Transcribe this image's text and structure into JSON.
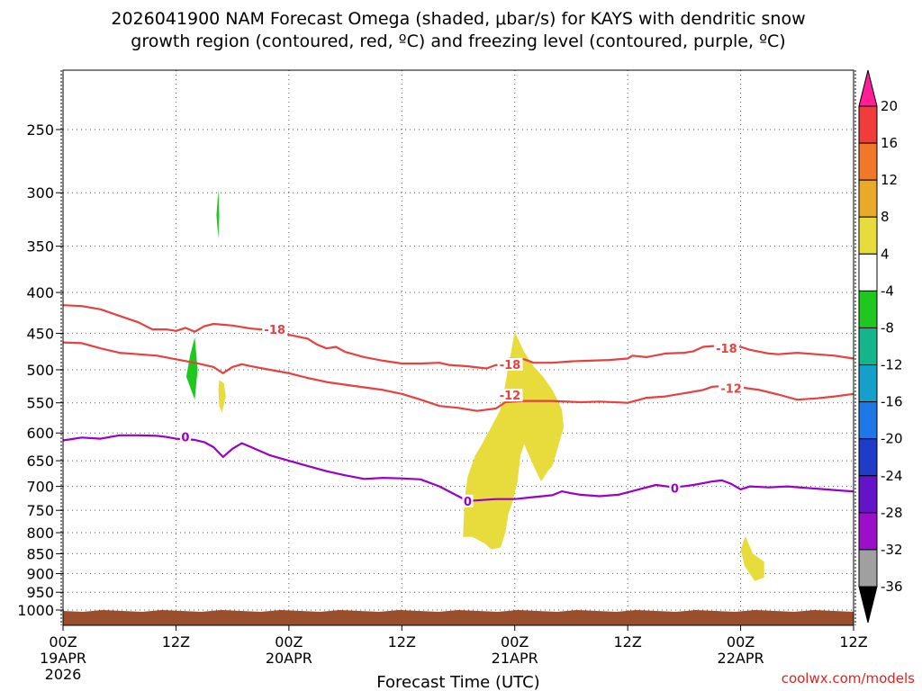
{
  "chart_data": {
    "type": "time-height cross-section",
    "title_line1": "2026041900 NAM Forecast Omega (shaded, μbar/s) for KAYS with dendritic snow",
    "title_line2": "growth region (contoured, red, ºC) and freezing level (contoured, purple, ºC)",
    "xlabel": "Forecast Time (UTC)",
    "credit": "coolwx.com/models",
    "x_range_hours": [
      0,
      84
    ],
    "x_ticks": [
      {
        "hour": 0,
        "label": "00Z",
        "date": "19APR",
        "year": "2026"
      },
      {
        "hour": 12,
        "label": "12Z",
        "date": "",
        "year": ""
      },
      {
        "hour": 24,
        "label": "00Z",
        "date": "20APR",
        "year": ""
      },
      {
        "hour": 36,
        "label": "12Z",
        "date": "",
        "year": ""
      },
      {
        "hour": 48,
        "label": "00Z",
        "date": "21APR",
        "year": ""
      },
      {
        "hour": 60,
        "label": "12Z",
        "date": "",
        "year": ""
      },
      {
        "hour": 72,
        "label": "00Z",
        "date": "22APR",
        "year": ""
      },
      {
        "hour": 84,
        "label": "12Z",
        "date": "",
        "year": ""
      }
    ],
    "y_pressure_levels": [
      "250",
      "300",
      "350",
      "400",
      "450",
      "500",
      "550",
      "600",
      "650",
      "700",
      "750",
      "800",
      "850",
      "900",
      "950",
      "1000"
    ],
    "y_range_hpa": [
      200,
      1030
    ],
    "colorbar": {
      "labels": [
        "20",
        "16",
        "12",
        "8",
        "4",
        "-4",
        "-8",
        "-12",
        "-16",
        "-20",
        "-24",
        "-28",
        "-32",
        "-36"
      ],
      "colors": [
        "#ff1e96",
        "#f23c3c",
        "#f07828",
        "#e8aa28",
        "#e8dc3c",
        "#ffffff",
        "#1ec81e",
        "#14b48c",
        "#14a0c8",
        "#1e78e6",
        "#1e3cc8",
        "#6414c8",
        "#9b0fc8",
        "#a0a0a0",
        "#000000"
      ]
    },
    "series": [
      {
        "name": "dgz_-18C",
        "label": "-18",
        "color": "#e84040",
        "label_at": [
          [
            22.5,
            445
          ],
          [
            47.5,
            492
          ],
          [
            70.5,
            470
          ]
        ],
        "points": [
          [
            0,
            415
          ],
          [
            2,
            416
          ],
          [
            4,
            420
          ],
          [
            6,
            428
          ],
          [
            8,
            436
          ],
          [
            9.5,
            445
          ],
          [
            11,
            445
          ],
          [
            12,
            447
          ],
          [
            13,
            443
          ],
          [
            14,
            448
          ],
          [
            15,
            441
          ],
          [
            16,
            438
          ],
          [
            18,
            440
          ],
          [
            20,
            444
          ],
          [
            22,
            446
          ],
          [
            24,
            452
          ],
          [
            26,
            457
          ],
          [
            27,
            465
          ],
          [
            28,
            470
          ],
          [
            29,
            468
          ],
          [
            30,
            475
          ],
          [
            32,
            482
          ],
          [
            34,
            487
          ],
          [
            36,
            491
          ],
          [
            38,
            491
          ],
          [
            40,
            490
          ],
          [
            41,
            493
          ],
          [
            43,
            495
          ],
          [
            45,
            498
          ],
          [
            46,
            493
          ],
          [
            46.8,
            496
          ],
          [
            47.5,
            484
          ],
          [
            49,
            485
          ],
          [
            50,
            490
          ],
          [
            52,
            490
          ],
          [
            54,
            488
          ],
          [
            56,
            487
          ],
          [
            58,
            486
          ],
          [
            60,
            484
          ],
          [
            60.5,
            480
          ],
          [
            62,
            482
          ],
          [
            64,
            477
          ],
          [
            66,
            476
          ],
          [
            67,
            474
          ],
          [
            68,
            468
          ],
          [
            70,
            466
          ],
          [
            72,
            468
          ],
          [
            73,
            472
          ],
          [
            75,
            477
          ],
          [
            76,
            478
          ],
          [
            78,
            476
          ],
          [
            80,
            478
          ],
          [
            82,
            480
          ],
          [
            84,
            484
          ]
        ]
      },
      {
        "name": "dgz_-12C",
        "label": "-12",
        "color": "#e84040",
        "label_at": [
          [
            47.5,
            538
          ],
          [
            71,
            527
          ]
        ],
        "points": [
          [
            0,
            462
          ],
          [
            2,
            463
          ],
          [
            4,
            470
          ],
          [
            6,
            476
          ],
          [
            8,
            478
          ],
          [
            10,
            480
          ],
          [
            12,
            485
          ],
          [
            14,
            490
          ],
          [
            16,
            496
          ],
          [
            17,
            505
          ],
          [
            18,
            496
          ],
          [
            19,
            492
          ],
          [
            20,
            495
          ],
          [
            22,
            500
          ],
          [
            24,
            505
          ],
          [
            26,
            512
          ],
          [
            28,
            518
          ],
          [
            30,
            522
          ],
          [
            32,
            526
          ],
          [
            34,
            530
          ],
          [
            36,
            536
          ],
          [
            38,
            545
          ],
          [
            40,
            555
          ],
          [
            42,
            558
          ],
          [
            44,
            563
          ],
          [
            46,
            559
          ],
          [
            47,
            549
          ],
          [
            49,
            547
          ],
          [
            52,
            547
          ],
          [
            55,
            549
          ],
          [
            57,
            548
          ],
          [
            60,
            550
          ],
          [
            61,
            546
          ],
          [
            62,
            542
          ],
          [
            64,
            540
          ],
          [
            66,
            535
          ],
          [
            68,
            530
          ],
          [
            69,
            525
          ],
          [
            70,
            524
          ],
          [
            72,
            526
          ],
          [
            74,
            530
          ],
          [
            76,
            537
          ],
          [
            78,
            545
          ],
          [
            80,
            543
          ],
          [
            82,
            540
          ],
          [
            84,
            536
          ]
        ]
      },
      {
        "name": "freezing_0C",
        "label": "0",
        "color": "#9a00c8",
        "label_at": [
          [
            13,
            607
          ],
          [
            43,
            730
          ],
          [
            65,
            703
          ]
        ],
        "points": [
          [
            0,
            613
          ],
          [
            2,
            608
          ],
          [
            4,
            610
          ],
          [
            6,
            604
          ],
          [
            8,
            604
          ],
          [
            10,
            605
          ],
          [
            11,
            607
          ],
          [
            12,
            610
          ],
          [
            14,
            612
          ],
          [
            15,
            616
          ],
          [
            16,
            625
          ],
          [
            17,
            643
          ],
          [
            18,
            628
          ],
          [
            19,
            618
          ],
          [
            20,
            625
          ],
          [
            22,
            640
          ],
          [
            24,
            650
          ],
          [
            26,
            660
          ],
          [
            28,
            670
          ],
          [
            30,
            678
          ],
          [
            32,
            685
          ],
          [
            34,
            683
          ],
          [
            36,
            684
          ],
          [
            38,
            686
          ],
          [
            40,
            700
          ],
          [
            42,
            720
          ],
          [
            43,
            730
          ],
          [
            46,
            726
          ],
          [
            48,
            726
          ],
          [
            50,
            722
          ],
          [
            52,
            718
          ],
          [
            53,
            710
          ],
          [
            54,
            714
          ],
          [
            55,
            717
          ],
          [
            57,
            720
          ],
          [
            59,
            717
          ],
          [
            60,
            712
          ],
          [
            61,
            707
          ],
          [
            63,
            697
          ],
          [
            65,
            702
          ],
          [
            67,
            697
          ],
          [
            69,
            690
          ],
          [
            70,
            688
          ],
          [
            71,
            695
          ],
          [
            72,
            706
          ],
          [
            73,
            700
          ],
          [
            75,
            702
          ],
          [
            77,
            700
          ],
          [
            79,
            703
          ],
          [
            81,
            706
          ],
          [
            83,
            709
          ],
          [
            84,
            710
          ]
        ]
      }
    ],
    "omega_shading": [
      {
        "value_range": "-8 to -4",
        "color": "#1ec81e",
        "points": [
          [
            16.5,
            297
          ],
          [
            16.6,
            320
          ],
          [
            16.5,
            342
          ],
          [
            16.3,
            320
          ]
        ]
      },
      {
        "value_range": "-8 to -4",
        "color": "#1ec81e",
        "points": [
          [
            14,
            455
          ],
          [
            14.3,
            500
          ],
          [
            14,
            545
          ],
          [
            13.1,
            510
          ],
          [
            13.5,
            480
          ]
        ]
      },
      {
        "value_range": "4 to 8",
        "color": "#e8dc3c",
        "points": [
          [
            16.6,
            515
          ],
          [
            17.1,
            520
          ],
          [
            17.3,
            540
          ],
          [
            16.9,
            565
          ],
          [
            16.6,
            555
          ],
          [
            16.5,
            530
          ]
        ]
      },
      {
        "value_range": "4 to 8",
        "color": "#e8dc3c",
        "points": [
          [
            48,
            448
          ],
          [
            49,
            475
          ],
          [
            50,
            495
          ],
          [
            51,
            510
          ],
          [
            52,
            530
          ],
          [
            53,
            560
          ],
          [
            53.2,
            590
          ],
          [
            52.5,
            630
          ],
          [
            52,
            660
          ],
          [
            51.5,
            670
          ],
          [
            50.8,
            690
          ],
          [
            50,
            660
          ],
          [
            49,
            620
          ],
          [
            48.6,
            640
          ],
          [
            48.3,
            690
          ],
          [
            47.8,
            730
          ],
          [
            47.3,
            760
          ],
          [
            47,
            800
          ],
          [
            46.5,
            835
          ],
          [
            45.5,
            840
          ],
          [
            44.8,
            825
          ],
          [
            43.5,
            810
          ],
          [
            42.5,
            810
          ],
          [
            42.6,
            760
          ],
          [
            42.7,
            720
          ],
          [
            43,
            680
          ],
          [
            43.8,
            640
          ],
          [
            44.5,
            620
          ],
          [
            45.5,
            590
          ],
          [
            46.5,
            560
          ],
          [
            47,
            520
          ]
        ]
      },
      {
        "value_range": "4 to 8",
        "color": "#e8dc3c",
        "points": [
          [
            72.5,
            808
          ],
          [
            73.3,
            850
          ],
          [
            74.5,
            870
          ],
          [
            74.5,
            910
          ],
          [
            73.5,
            920
          ],
          [
            72.4,
            880
          ],
          [
            72,
            840
          ]
        ]
      }
    ]
  }
}
